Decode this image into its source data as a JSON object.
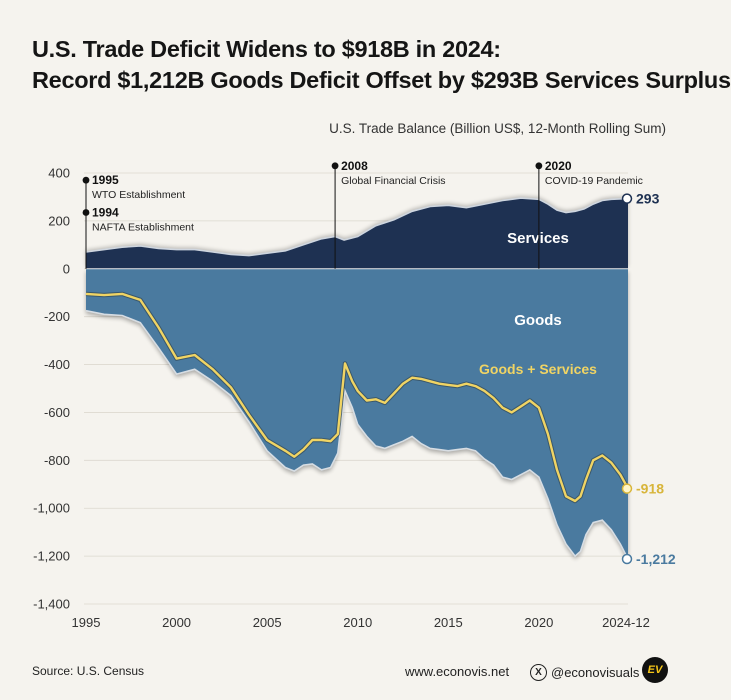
{
  "title": {
    "line1": "U.S. Trade Deficit Widens to $918B in 2024:",
    "line2": "Record $1,212B Goods Deficit Offset by $293B Services Surplus"
  },
  "unit_label": "U.S. Trade Balance (Billion US$, 12-Month Rolling Sum)",
  "footer": {
    "source": "Source: U.S. Census",
    "website": "www.econovis.net",
    "x_glyph": "X",
    "handle": "@econovisuals",
    "logo_text": "EV"
  },
  "colors": {
    "services": "#1e3152",
    "goods": "#4a7a9f",
    "total": "#f0d464",
    "background": "#f5f3ee"
  },
  "chart_data": {
    "type": "area",
    "ylim": [
      -1400,
      400
    ],
    "xlim": [
      1995,
      2024.92
    ],
    "yticks": [
      {
        "v": 400,
        "label": "400"
      },
      {
        "v": 200,
        "label": "200"
      },
      {
        "v": 0,
        "label": "0"
      },
      {
        "v": -200,
        "label": "-200"
      },
      {
        "v": -400,
        "label": "-400"
      },
      {
        "v": -600,
        "label": "-600"
      },
      {
        "v": -800,
        "label": "-800"
      },
      {
        "v": -1000,
        "label": "-1,000"
      },
      {
        "v": -1200,
        "label": "-1,200"
      },
      {
        "v": -1400,
        "label": "-1,400"
      }
    ],
    "xticks": [
      {
        "v": 1995,
        "label": "1995"
      },
      {
        "v": 2000,
        "label": "2000"
      },
      {
        "v": 2005,
        "label": "2005"
      },
      {
        "v": 2010,
        "label": "2010"
      },
      {
        "v": 2015,
        "label": "2015"
      },
      {
        "v": 2020,
        "label": "2020"
      },
      {
        "v": 2024.92,
        "label": "2024-12"
      }
    ],
    "grid": true,
    "series": [
      {
        "name": "Services",
        "label": "Services",
        "end_label": "293",
        "x": [
          1995,
          1996,
          1997,
          1998,
          1999,
          2000,
          2001,
          2002,
          2003,
          2004,
          2005,
          2006,
          2007,
          2008,
          2008.75,
          2009.25,
          2010,
          2011,
          2012,
          2013,
          2014,
          2015,
          2016,
          2017,
          2018,
          2019,
          2020,
          2020.5,
          2021,
          2021.5,
          2022,
          2022.5,
          2023,
          2023.5,
          2024,
          2024.92
        ],
        "values": [
          70,
          80,
          90,
          95,
          85,
          80,
          80,
          70,
          60,
          55,
          65,
          75,
          100,
          125,
          135,
          120,
          135,
          180,
          205,
          240,
          260,
          265,
          255,
          270,
          285,
          295,
          290,
          270,
          245,
          235,
          240,
          250,
          270,
          285,
          290,
          293
        ]
      },
      {
        "name": "Goods",
        "label": "Goods",
        "end_label": "-1,212",
        "x": [
          1995,
          1996,
          1997,
          1998,
          1999,
          2000,
          2001,
          2002,
          2003,
          2004,
          2005,
          2006,
          2006.5,
          2007,
          2007.5,
          2008,
          2008.5,
          2008.9,
          2009.3,
          2009.7,
          2010,
          2010.5,
          2011,
          2011.5,
          2012,
          2012.5,
          2013,
          2013.5,
          2014,
          2014.5,
          2015,
          2015.5,
          2016,
          2016.5,
          2017,
          2017.5,
          2018,
          2018.5,
          2019,
          2019.5,
          2020,
          2020.5,
          2021,
          2021.5,
          2022,
          2022.3,
          2022.6,
          2023,
          2023.5,
          2024,
          2024.5,
          2024.92
        ],
        "values": [
          -175,
          -190,
          -195,
          -225,
          -330,
          -440,
          -420,
          -470,
          -530,
          -640,
          -760,
          -830,
          -845,
          -820,
          -815,
          -840,
          -830,
          -770,
          -510,
          -580,
          -650,
          -700,
          -740,
          -750,
          -735,
          -720,
          -700,
          -730,
          -750,
          -755,
          -760,
          -755,
          -750,
          -760,
          -795,
          -820,
          -870,
          -880,
          -860,
          -840,
          -870,
          -960,
          -1070,
          -1150,
          -1200,
          -1180,
          -1110,
          -1060,
          -1050,
          -1090,
          -1150,
          -1212
        ]
      },
      {
        "name": "Goods + Services",
        "label": "Goods + Services",
        "end_label": "-918",
        "x": [
          1995,
          1996,
          1997,
          1998,
          1999,
          2000,
          2001,
          2002,
          2003,
          2004,
          2005,
          2006,
          2006.5,
          2007,
          2007.5,
          2008,
          2008.5,
          2008.9,
          2009.3,
          2009.7,
          2010,
          2010.5,
          2011,
          2011.5,
          2012,
          2012.5,
          2013,
          2013.5,
          2014,
          2014.5,
          2015,
          2015.5,
          2016,
          2016.5,
          2017,
          2017.5,
          2018,
          2018.5,
          2019,
          2019.5,
          2020,
          2020.5,
          2021,
          2021.5,
          2022,
          2022.3,
          2022.6,
          2023,
          2023.5,
          2024,
          2024.5,
          2024.92
        ],
        "values": [
          -105,
          -110,
          -105,
          -130,
          -245,
          -375,
          -360,
          -420,
          -495,
          -610,
          -715,
          -760,
          -785,
          -755,
          -715,
          -715,
          -720,
          -690,
          -395,
          -470,
          -510,
          -550,
          -545,
          -560,
          -520,
          -480,
          -455,
          -460,
          -470,
          -480,
          -485,
          -490,
          -480,
          -490,
          -510,
          -540,
          -580,
          -600,
          -575,
          -550,
          -580,
          -690,
          -840,
          -950,
          -970,
          -950,
          -880,
          -800,
          -780,
          -810,
          -860,
          -918
        ]
      }
    ],
    "annotations": [
      {
        "x": 1995,
        "y": 370,
        "year": "1995",
        "text": "WTO Establishment"
      },
      {
        "x": 1995,
        "y": 235,
        "year": "1994",
        "text": "NAFTA Establishment"
      },
      {
        "x": 2008.75,
        "y": 430,
        "year": "2008",
        "text": "Global Financial Crisis"
      },
      {
        "x": 2020,
        "y": 430,
        "year": "2020",
        "text": "COVID-19 Pandemic"
      }
    ]
  }
}
